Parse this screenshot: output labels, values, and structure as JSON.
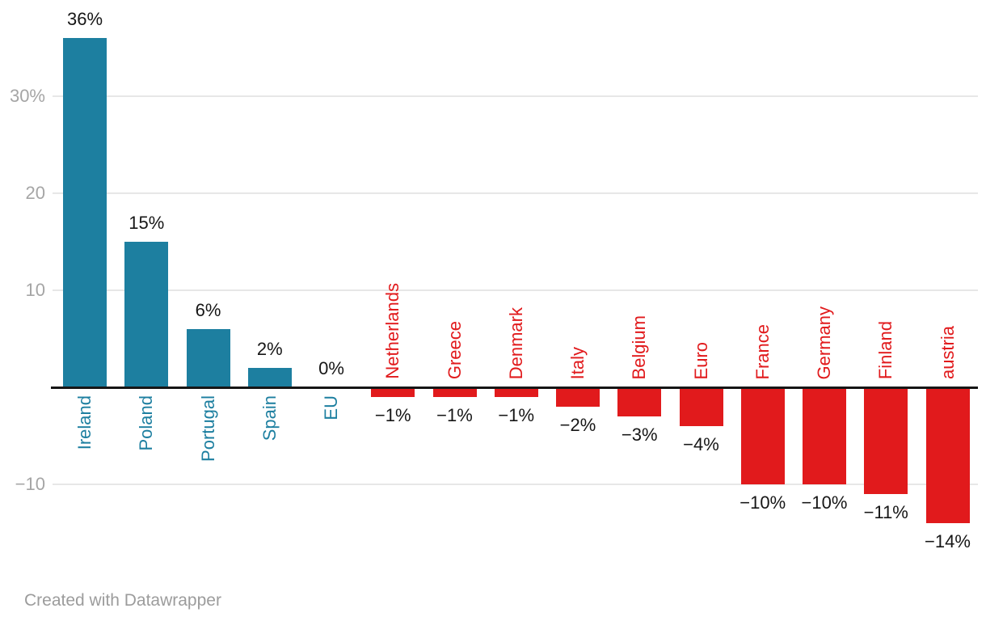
{
  "chart_data": {
    "type": "bar",
    "title": "",
    "xlabel": "",
    "ylabel": "",
    "orientation": "vertical",
    "categories": [
      "Ireland",
      "Poland",
      "Portugal",
      "Spain",
      "EU",
      "Netherlands",
      "Greece",
      "Denmark",
      "Italy",
      "Belgium",
      "Euro",
      "France",
      "Germany",
      "Finland",
      "austria"
    ],
    "values": [
      36,
      15,
      6,
      2,
      0,
      -1,
      -1,
      -1,
      -2,
      -3,
      -4,
      -10,
      -10,
      -11,
      -14
    ],
    "value_labels": [
      "36%",
      "15%",
      "6%",
      "2%",
      "0%",
      "−1%",
      "−1%",
      "−1%",
      "−2%",
      "−3%",
      "−4%",
      "−10%",
      "−10%",
      "−11%",
      "−14%"
    ],
    "bar_colors": [
      "#1d7fa0",
      "#1d7fa0",
      "#1d7fa0",
      "#1d7fa0",
      "#1d7fa0",
      "#e11a1c",
      "#e11a1c",
      "#e11a1c",
      "#e11a1c",
      "#e11a1c",
      "#e11a1c",
      "#e11a1c",
      "#e11a1c",
      "#e11a1c",
      "#e11a1c"
    ],
    "y_axis": {
      "range": [
        -15,
        37
      ],
      "grid": true,
      "zero_line": true,
      "ticks": [
        {
          "value": 30,
          "label": "30%"
        },
        {
          "value": 20,
          "label": "20"
        },
        {
          "value": 10,
          "label": "10"
        },
        {
          "value": -10,
          "label": "−10"
        }
      ]
    },
    "legend": {
      "visible": false
    },
    "colors": {
      "positive": "#1d7fa0",
      "negative": "#e11a1c",
      "grid": "#e7e7e7",
      "zero_line": "#161616",
      "tick_label": "#a5a5a5",
      "value_label": "#161616"
    },
    "value_label_position": "outside-end",
    "category_label_position": "at-axis-rotated-90"
  },
  "footer": {
    "credit": "Created with Datawrapper"
  }
}
